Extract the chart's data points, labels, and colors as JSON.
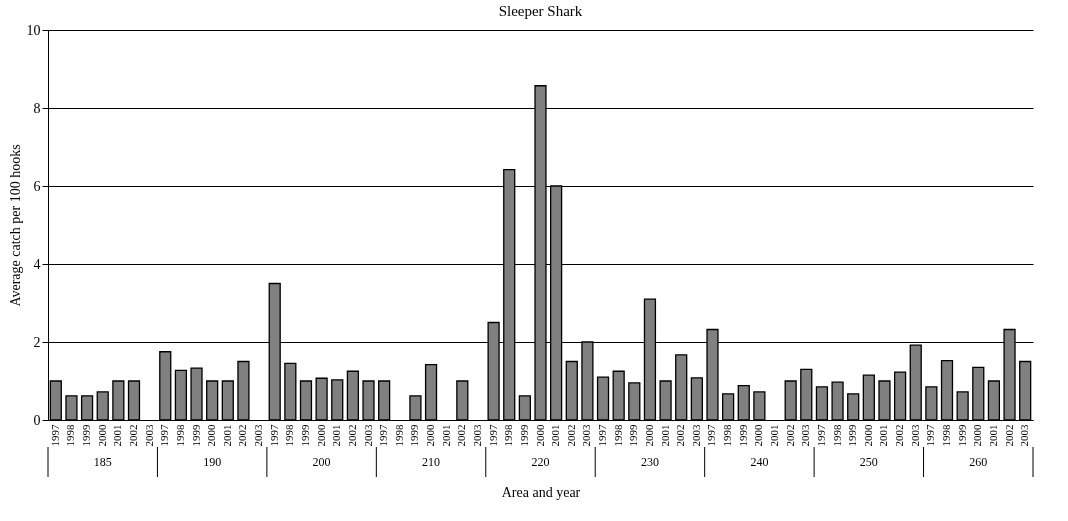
{
  "chart_data": {
    "type": "bar",
    "title": "Sleeper Shark",
    "xlabel": "Area and year",
    "ylabel": "Average catch per 100 hooks",
    "categories": [
      "1997",
      "1998",
      "1999",
      "2000",
      "2001",
      "2002",
      "2003",
      "1997",
      "1998",
      "1999",
      "2000",
      "2001",
      "2002",
      "2003",
      "1997",
      "1998",
      "1999",
      "2000",
      "2001",
      "2002",
      "2003",
      "1997",
      "1998",
      "1999",
      "2000",
      "2001",
      "2002",
      "2003",
      "1997",
      "1998",
      "1999",
      "2000",
      "2001",
      "2002",
      "2003",
      "1997",
      "1998",
      "1999",
      "2000",
      "2001",
      "2002",
      "2003",
      "1997",
      "1998",
      "1999",
      "2000",
      "2001",
      "2002",
      "2003",
      "1997",
      "1998",
      "1999",
      "2000",
      "2001",
      "2002",
      "2003",
      "1997",
      "1998",
      "1999",
      "2000",
      "2001",
      "2002",
      "2003"
    ],
    "values": [
      1.0,
      0.62,
      0.62,
      0.72,
      1.0,
      1.0,
      null,
      1.75,
      1.27,
      1.33,
      1.0,
      1.0,
      1.5,
      null,
      3.5,
      1.45,
      1.0,
      1.07,
      1.03,
      1.25,
      1.0,
      1.0,
      null,
      0.62,
      1.42,
      null,
      1.0,
      null,
      2.5,
      6.42,
      0.62,
      8.57,
      6.0,
      1.5,
      2.0,
      1.1,
      1.25,
      0.95,
      3.1,
      1.0,
      1.67,
      1.08,
      2.32,
      0.67,
      0.88,
      0.72,
      null,
      1.0,
      1.3,
      0.85,
      0.97,
      0.67,
      1.15,
      1.0,
      1.23,
      1.92,
      0.85,
      1.52,
      0.72,
      1.35,
      1.0,
      2.32,
      1.5
    ],
    "color": "#808080",
    "annotations": [
      "185",
      "190",
      "200",
      "210",
      "220",
      "230",
      "240",
      "250",
      "260"
    ],
    "ylim": [
      0,
      10
    ],
    "yticks": [
      0,
      2,
      4,
      6,
      8,
      10
    ],
    "grid": "y"
  }
}
